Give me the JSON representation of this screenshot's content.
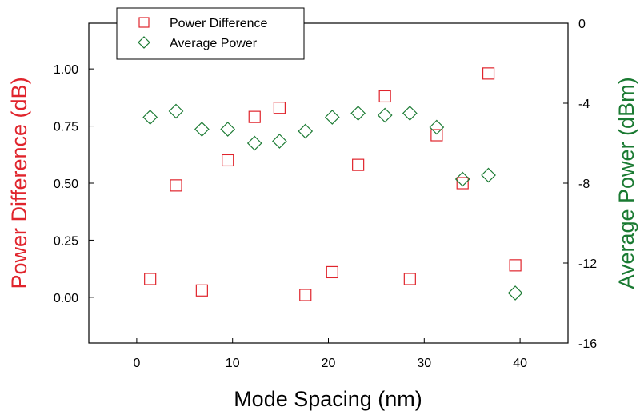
{
  "chart_data": {
    "type": "scatter",
    "xlabel": "Mode Spacing (nm)",
    "y1label": "Power Difference (dB)",
    "y2label": "Average Power (dBm)",
    "xlim": [
      -5,
      45
    ],
    "y1lim": [
      -0.2,
      1.2
    ],
    "y2lim": [
      -16,
      0
    ],
    "xticks": [
      "0",
      "10",
      "20",
      "30",
      "40"
    ],
    "xtick_values": [
      0,
      10,
      20,
      30,
      40
    ],
    "y1ticks": [
      "0.00",
      "0.25",
      "0.50",
      "0.75",
      "1.00"
    ],
    "y1tick_values": [
      0,
      0.25,
      0.5,
      0.75,
      1.0
    ],
    "y2ticks": [
      "0",
      "-4",
      "-8",
      "-12",
      "-16"
    ],
    "y2tick_values": [
      0,
      -4,
      -8,
      -12,
      -16
    ],
    "grid": false,
    "legend_position": "top-left",
    "series": [
      {
        "name": "Power Difference",
        "axis": "left",
        "marker": "square",
        "color": "#e0242c",
        "x": [
          1.4,
          4.1,
          6.8,
          9.5,
          12.3,
          14.9,
          17.6,
          20.4,
          23.1,
          25.9,
          28.5,
          31.3,
          34.0,
          36.7,
          39.5
        ],
        "y": [
          0.08,
          0.49,
          0.03,
          0.6,
          0.79,
          0.83,
          0.01,
          0.11,
          0.58,
          0.88,
          0.08,
          0.71,
          0.5,
          0.98,
          0.14
        ]
      },
      {
        "name": "Average Power",
        "axis": "right",
        "marker": "diamond",
        "color": "#1a7a32",
        "x": [
          1.4,
          4.1,
          6.8,
          9.5,
          12.3,
          14.9,
          17.6,
          20.4,
          23.1,
          25.9,
          28.5,
          31.3,
          34.0,
          36.7,
          39.5
        ],
        "y": [
          -4.7,
          -4.4,
          -5.3,
          -5.3,
          -6.0,
          -5.9,
          -5.4,
          -4.7,
          -4.5,
          -4.6,
          -4.5,
          -5.2,
          -7.8,
          -7.6,
          -13.5
        ]
      }
    ]
  }
}
